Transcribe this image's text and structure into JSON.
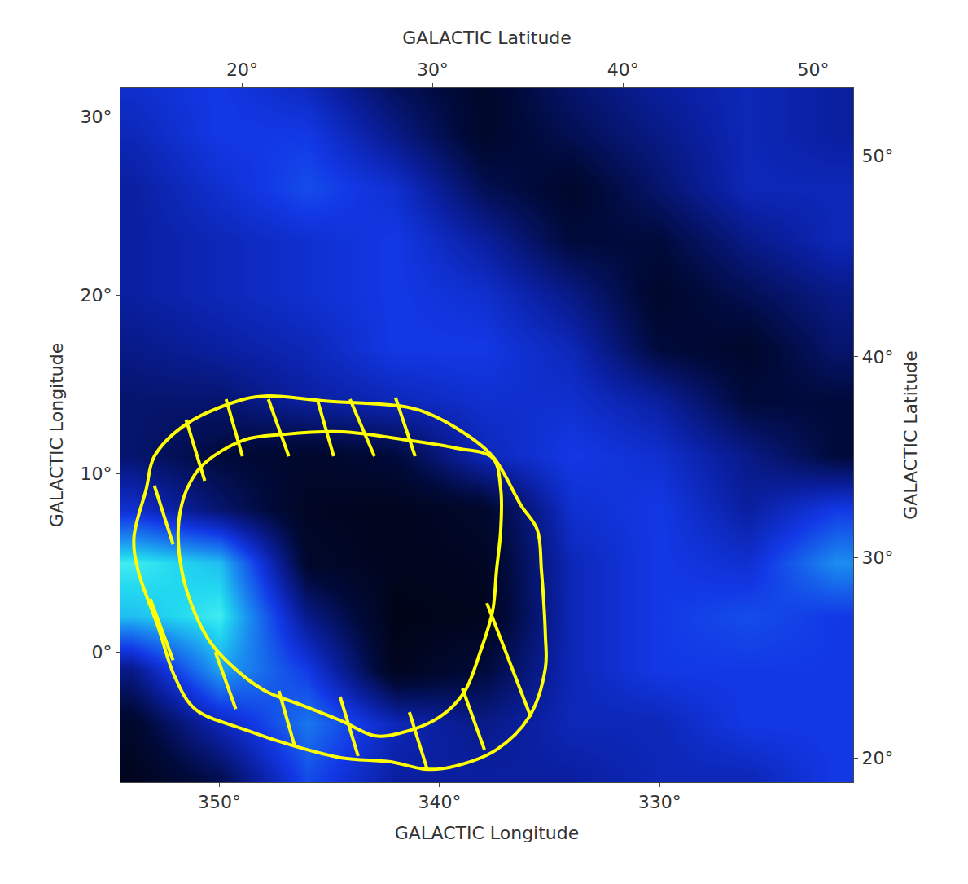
{
  "chart_data": {
    "type": "heatmap",
    "xlabel": "GALACTIC Longitude",
    "ylabel": "GALACTIC Longitude",
    "x2label": "GALACTIC Latitude",
    "y2label": "GALACTIC Latitude",
    "x": [
      354,
      350,
      346,
      342,
      338,
      334,
      330,
      326,
      322
    ],
    "y": [
      -7,
      -4,
      -1,
      2,
      5,
      8,
      11,
      14,
      17,
      20,
      23,
      26,
      29,
      32
    ],
    "cells": [
      [
        0.1,
        0.25,
        0.6,
        0.4,
        0.4,
        0.4,
        0.45,
        0.45,
        0.55
      ],
      [
        0.15,
        0.45,
        0.7,
        0.45,
        0.35,
        0.45,
        0.45,
        0.55,
        0.55
      ],
      [
        0.35,
        0.8,
        0.55,
        0.1,
        0.2,
        0.45,
        0.55,
        0.55,
        0.55
      ],
      [
        0.85,
        0.95,
        0.35,
        0.08,
        0.1,
        0.45,
        0.55,
        0.6,
        0.55
      ],
      [
        0.95,
        0.85,
        0.15,
        0.1,
        0.12,
        0.45,
        0.55,
        0.5,
        0.75
      ],
      [
        0.5,
        0.3,
        0.12,
        0.1,
        0.15,
        0.5,
        0.55,
        0.4,
        0.55
      ],
      [
        0.3,
        0.2,
        0.15,
        0.2,
        0.45,
        0.55,
        0.5,
        0.35,
        0.2
      ],
      [
        0.3,
        0.3,
        0.4,
        0.45,
        0.5,
        0.5,
        0.4,
        0.2,
        0.2
      ],
      [
        0.35,
        0.4,
        0.45,
        0.55,
        0.55,
        0.45,
        0.2,
        0.15,
        0.3
      ],
      [
        0.4,
        0.45,
        0.5,
        0.55,
        0.5,
        0.35,
        0.15,
        0.25,
        0.35
      ],
      [
        0.4,
        0.45,
        0.5,
        0.55,
        0.4,
        0.2,
        0.2,
        0.35,
        0.45
      ],
      [
        0.4,
        0.5,
        0.6,
        0.5,
        0.25,
        0.15,
        0.3,
        0.45,
        0.45
      ],
      [
        0.45,
        0.55,
        0.55,
        0.35,
        0.15,
        0.25,
        0.35,
        0.45,
        0.4
      ],
      [
        0.5,
        0.55,
        0.45,
        0.25,
        0.15,
        0.3,
        0.4,
        0.45,
        0.4
      ]
    ],
    "zlim": [
      0,
      1
    ],
    "xlim": [
      354.5,
      321.2
    ],
    "xticks": [
      {
        "value": 350,
        "label": "350°"
      },
      {
        "value": 340,
        "label": "340°"
      },
      {
        "value": 330,
        "label": "330°"
      }
    ],
    "ylim": [
      -7.3,
      31.6
    ],
    "yticks": [
      {
        "value": 0,
        "label": "0°"
      },
      {
        "value": 10,
        "label": "10°"
      },
      {
        "value": 20,
        "label": "20°"
      },
      {
        "value": 30,
        "label": "30°"
      }
    ],
    "x2lim": [
      13.6,
      52.1
    ],
    "x2ticks": [
      {
        "value": 20,
        "label": "20°"
      },
      {
        "value": 30,
        "label": "30°"
      },
      {
        "value": 40,
        "label": "40°"
      },
      {
        "value": 50,
        "label": "50°"
      }
    ],
    "y2lim": [
      18.8,
      53.4
    ],
    "y2ticks": [
      {
        "value": 20,
        "label": "20°"
      },
      {
        "value": 30,
        "label": "30°"
      },
      {
        "value": 40,
        "label": "40°"
      },
      {
        "value": 50,
        "label": "50°"
      }
    ],
    "overlays": [
      {
        "type": "line",
        "color": "#ffff00",
        "x": [
          353.33,
          352.96,
          351.48,
          348.89,
          347.78,
          345.19,
          341.85,
          340.74,
          339.26,
          337.59,
          336.3,
          335.56,
          335.37,
          335.19,
          335.19,
          335.93,
          337.41,
          339.26,
          340.56,
          342.22,
          344.44,
          346.67,
          348.89,
          351.11,
          352.04,
          352.78,
          353.7,
          353.89,
          353.33
        ],
        "y": [
          9.13,
          10.96,
          12.79,
          14.16,
          14.34,
          14.06,
          13.79,
          13.47,
          12.56,
          10.96,
          8.22,
          6.85,
          4.57,
          0.91,
          -0.91,
          -3.65,
          -5.48,
          -6.39,
          -6.58,
          -6.16,
          -5.94,
          -5.25,
          -4.34,
          -3.2,
          -1.37,
          1.37,
          4.57,
          6.39,
          9.13
        ]
      },
      {
        "type": "line",
        "color": "#ffff00",
        "x": [
          351.48,
          350.74,
          348.89,
          347.04,
          344.44,
          341.48,
          339.26,
          337.59,
          337.22,
          337.22,
          337.41,
          337.59,
          338.15,
          338.89,
          340.0,
          341.85,
          342.96,
          344.44,
          346.3,
          347.78,
          348.89,
          350.37,
          351.3,
          351.78,
          351.85,
          351.48
        ],
        "y": [
          9.13,
          10.5,
          11.87,
          12.19,
          12.33,
          11.87,
          11.42,
          10.87,
          9.13,
          6.85,
          4.57,
          2.28,
          0,
          -2.28,
          -3.65,
          -4.57,
          -4.7,
          -3.88,
          -2.97,
          -2.28,
          -1.37,
          0.46,
          2.74,
          5.02,
          7.31,
          9.13
        ]
      },
      {
        "type": "segments",
        "color": "#ffff00",
        "segments": [
          [
            [
              351.52,
              13.01
            ],
            [
              350.67,
              9.59
            ]
          ],
          [
            [
              349.7,
              14.16
            ],
            [
              348.96,
              10.96
            ]
          ],
          [
            [
              347.78,
              14.16
            ],
            [
              346.85,
              10.96
            ]
          ],
          [
            [
              345.56,
              14.16
            ],
            [
              344.81,
              10.96
            ]
          ],
          [
            [
              344.07,
              14.16
            ],
            [
              342.96,
              10.96
            ]
          ],
          [
            [
              342.0,
              14.25
            ],
            [
              341.11,
              10.96
            ]
          ],
          [
            [
              352.96,
              9.32
            ],
            [
              352.11,
              6.03
            ]
          ],
          [
            [
              353.15,
              2.97
            ],
            [
              352.11,
              -0.46
            ]
          ],
          [
            [
              350.19,
              0
            ],
            [
              349.26,
              -3.2
            ]
          ],
          [
            [
              347.3,
              -2.19
            ],
            [
              346.59,
              -5.25
            ]
          ],
          [
            [
              344.52,
              -2.51
            ],
            [
              343.7,
              -5.84
            ]
          ],
          [
            [
              341.37,
              -3.38
            ],
            [
              340.56,
              -6.58
            ]
          ],
          [
            [
              338.96,
              -2.05
            ],
            [
              337.96,
              -5.48
            ]
          ],
          [
            [
              337.85,
              2.74
            ],
            [
              335.85,
              -3.65
            ]
          ]
        ]
      }
    ]
  }
}
